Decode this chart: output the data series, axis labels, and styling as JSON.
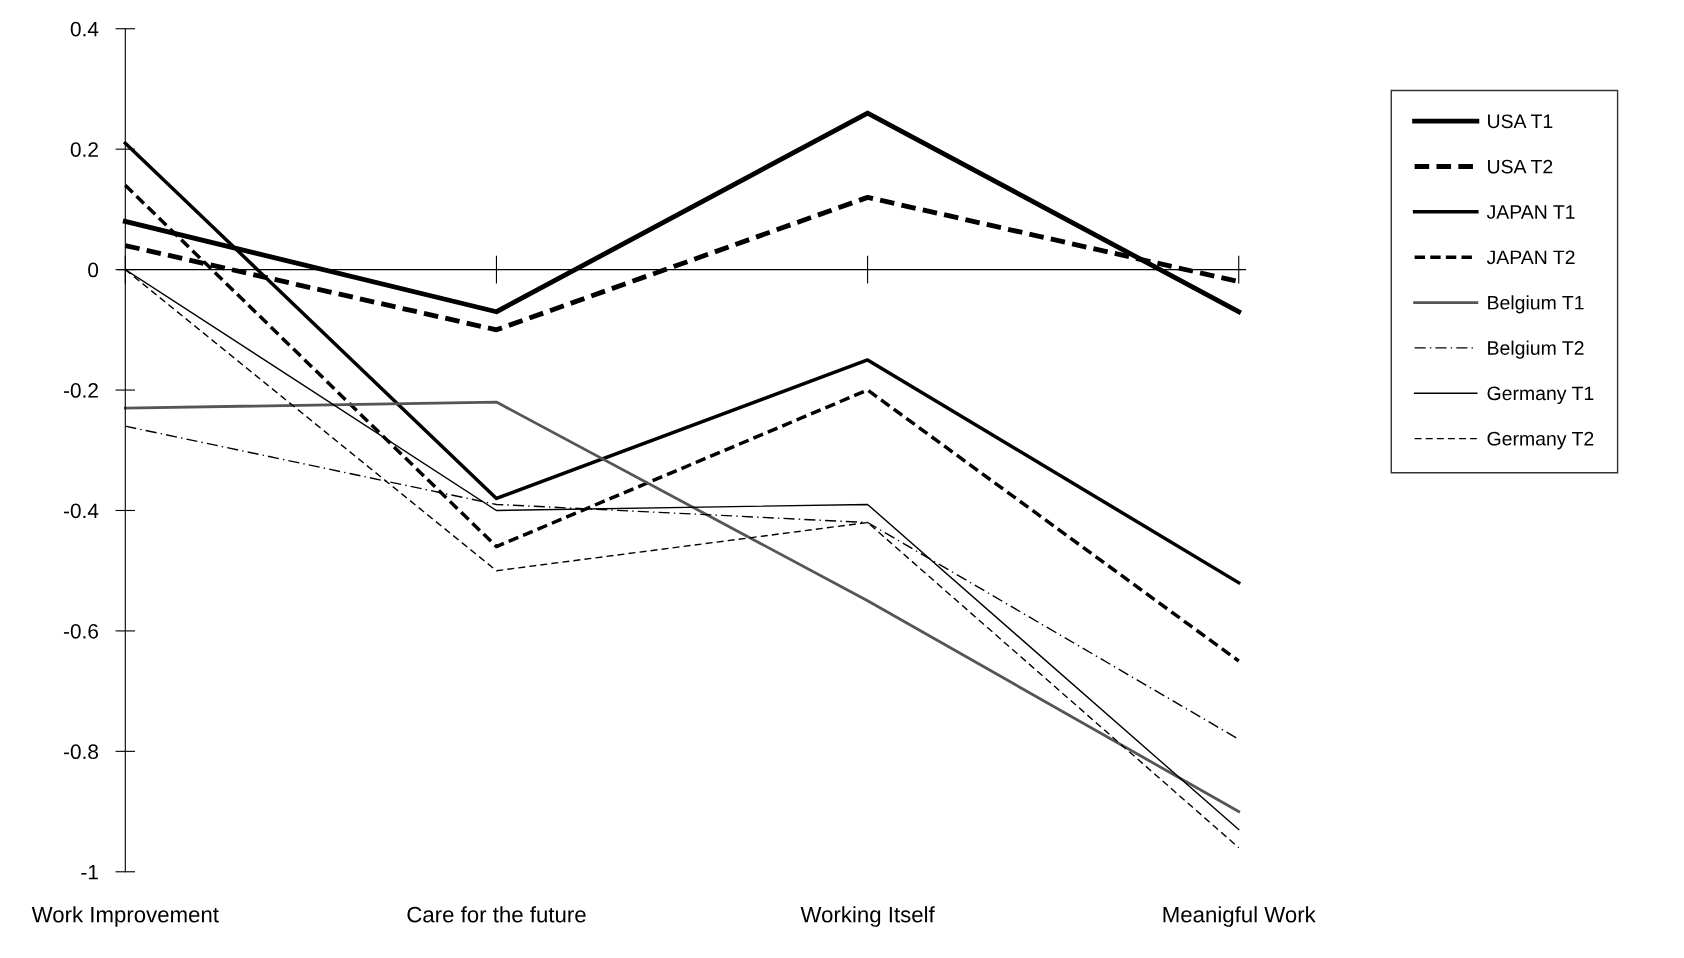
{
  "chart_data": {
    "type": "line",
    "categories": [
      "Work Improvement",
      "Care for the future",
      "Working Itself",
      "Meanigful Work"
    ],
    "ylim": [
      -1,
      0.4
    ],
    "yticks": [
      -1,
      -0.8,
      -0.6,
      -0.4,
      -0.2,
      0,
      0.2,
      0.4
    ],
    "grid": false,
    "legend": "right",
    "ref_lines": [
      {
        "axis": "y",
        "value": 0,
        "color": "#000000"
      }
    ],
    "marker": "none",
    "series": [
      {
        "name": "USA T1",
        "color": "#000000",
        "line_style": "solid",
        "values": [
          0.08,
          -0.07,
          0.26,
          -0.07
        ]
      },
      {
        "name": "USA T2",
        "color": "#000000",
        "line_style": "dashed",
        "values": [
          0.04,
          -0.1,
          0.12,
          -0.02
        ]
      },
      {
        "name": "JAPAN T1",
        "color": "#000000",
        "line_style": "solid",
        "values": [
          0.21,
          -0.38,
          -0.15,
          -0.52
        ]
      },
      {
        "name": "JAPAN T2",
        "color": "#000000",
        "line_style": "dashed",
        "values": [
          0.14,
          -0.46,
          -0.2,
          -0.65
        ]
      },
      {
        "name": "Belgium T1",
        "color": "#555555",
        "line_style": "solid",
        "values": [
          -0.23,
          -0.22,
          -0.55,
          -0.9
        ]
      },
      {
        "name": "Belgium T2",
        "color": "#000000",
        "line_style": "dashdot",
        "values": [
          -0.26,
          -0.39,
          -0.42,
          -0.78
        ]
      },
      {
        "name": "Germany T1",
        "color": "#000000",
        "line_style": "solid",
        "values": [
          0.0,
          -0.4,
          -0.39,
          -0.93
        ]
      },
      {
        "name": "Germany T2",
        "color": "#000000",
        "line_style": "dashed",
        "values": [
          0.0,
          -0.5,
          -0.42,
          -0.96
        ]
      }
    ]
  }
}
